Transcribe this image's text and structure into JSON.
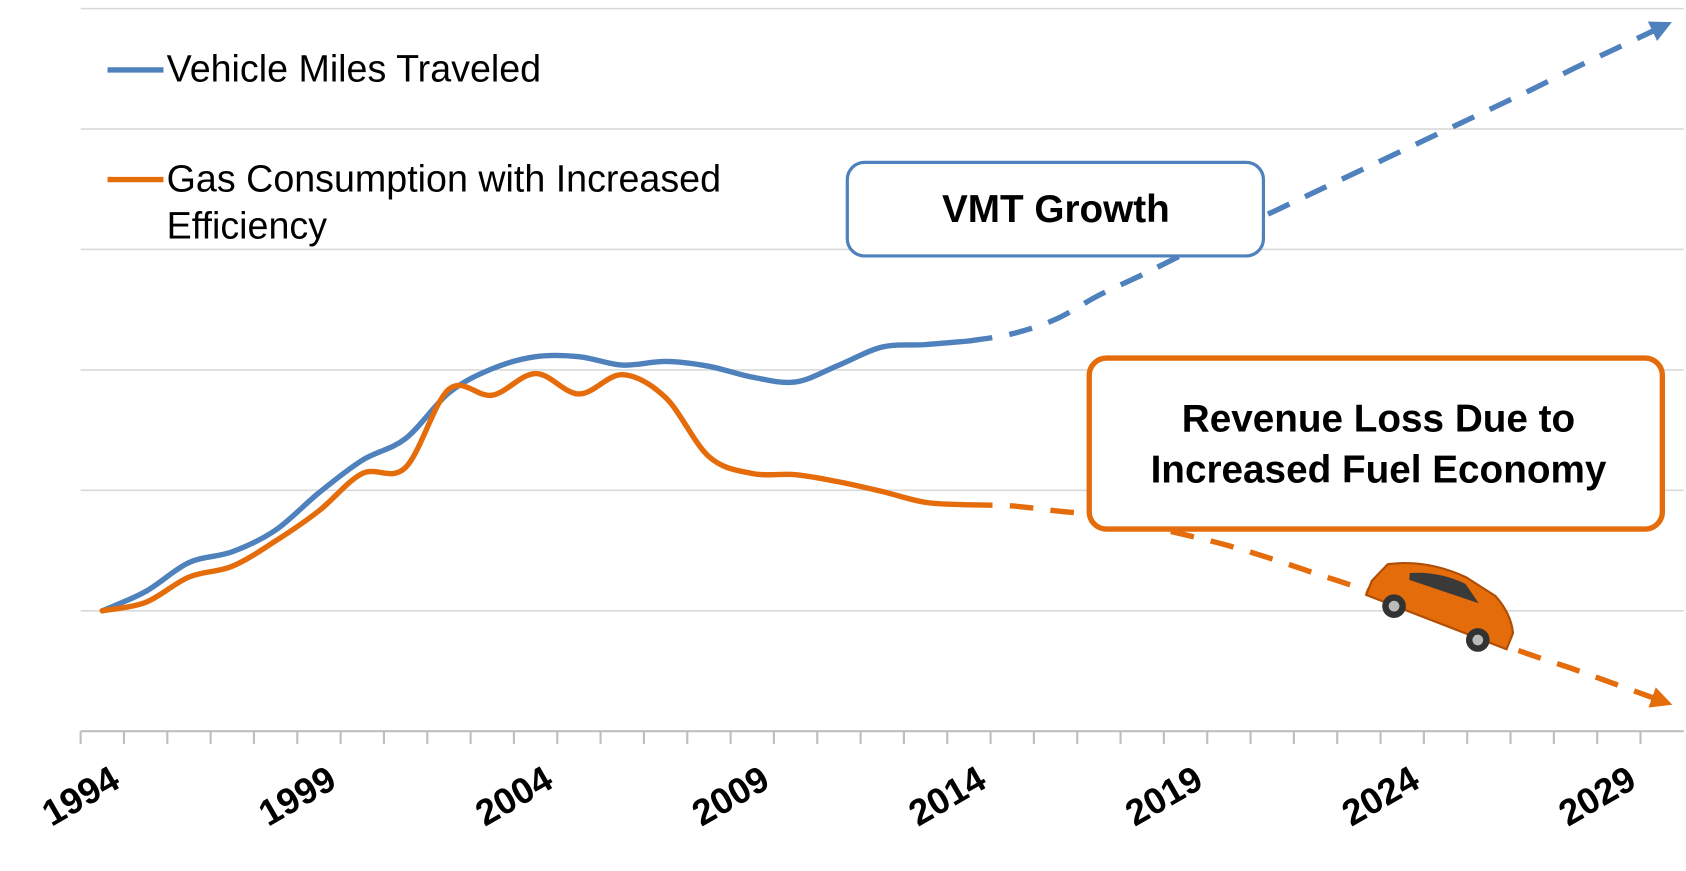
{
  "chart_data": {
    "type": "line",
    "categories": [
      "1994",
      null,
      null,
      null,
      null,
      "1999",
      null,
      null,
      null,
      null,
      "2004",
      null,
      null,
      null,
      null,
      "2009",
      null,
      null,
      null,
      null,
      "2014",
      null,
      null,
      null,
      null,
      "2019",
      null,
      null,
      null,
      null,
      "2024",
      null,
      null,
      null,
      null,
      "2029",
      null
    ],
    "series": [
      {
        "name": "Vehicle Miles Traveled",
        "color": "#4f81bd",
        "dash_from": 20,
        "values": [
          1.0,
          1.16,
          1.4,
          1.49,
          1.67,
          1.98,
          2.25,
          2.43,
          2.81,
          3.01,
          3.11,
          3.11,
          3.04,
          3.07,
          3.03,
          2.94,
          2.9,
          3.04,
          3.19,
          3.21,
          3.24,
          3.3,
          3.42,
          3.62,
          3.79,
          3.97,
          4.15,
          4.31,
          4.48,
          4.65,
          4.82,
          4.99,
          5.16,
          5.33,
          5.51,
          5.68,
          5.85
        ]
      },
      {
        "name": "Gas Consumption with Increased Efficiency",
        "color": "#e46c0a",
        "dash_from": 20,
        "values": [
          1.0,
          1.07,
          1.28,
          1.37,
          1.58,
          1.83,
          2.14,
          2.19,
          2.84,
          2.79,
          2.97,
          2.8,
          2.96,
          2.77,
          2.28,
          2.14,
          2.13,
          2.07,
          1.99,
          1.9,
          1.88,
          1.87,
          1.83,
          1.79,
          1.71,
          1.63,
          1.54,
          1.43,
          1.31,
          1.19,
          1.05,
          0.91,
          0.76,
          0.63,
          0.51,
          0.38,
          0.25
        ]
      }
    ],
    "ylim": [
      0,
      6
    ],
    "yticks": [
      1,
      2,
      3,
      4,
      5,
      6
    ],
    "grid": true,
    "legend": "top-left",
    "annotations": [
      {
        "lines": [
          "VMT Growth"
        ],
        "color": "#4f81bd"
      },
      {
        "lines": [
          "Revenue Loss Due to",
          "Increased Fuel Economy"
        ],
        "color": "#e46c0a"
      }
    ]
  }
}
